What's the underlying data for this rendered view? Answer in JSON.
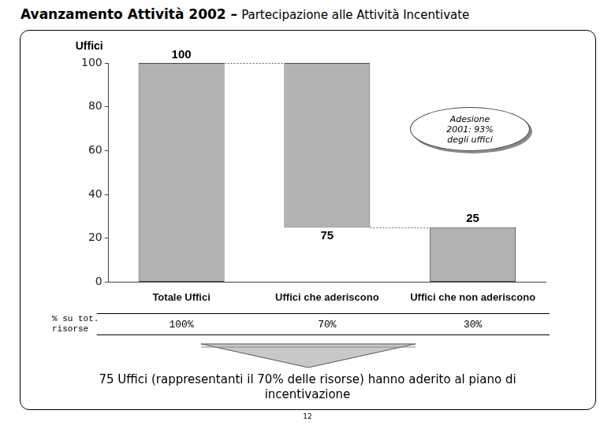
{
  "chart_data": {
    "type": "waterfall",
    "title": "Avanzamento Attività 2002 –",
    "subtitle": "Partecipazione alle Attività Incentivate",
    "y_label": "Uffici",
    "categories": [
      "Totale Uffici",
      "Uffici che aderiscono",
      "Uffici che non aderiscono"
    ],
    "values": [
      100,
      75,
      25
    ],
    "color": "#b2b2b2",
    "ylim": [
      0,
      100
    ],
    "yticks": [
      0,
      20,
      40,
      60,
      80,
      100
    ],
    "grid": false,
    "data_labels": true,
    "annotations": [
      {
        "text": "Adesione 2001: 93% degli uffici"
      }
    ],
    "resources_row": {
      "label": "% su tot. risorse",
      "values": [
        100,
        70,
        30
      ],
      "value_labels": [
        "100%",
        "70%",
        "30%"
      ]
    },
    "footer": "75 Uffici (rappresentanti il 70% delle risorse) hanno aderito al piano di incentivazione",
    "page": "12"
  }
}
